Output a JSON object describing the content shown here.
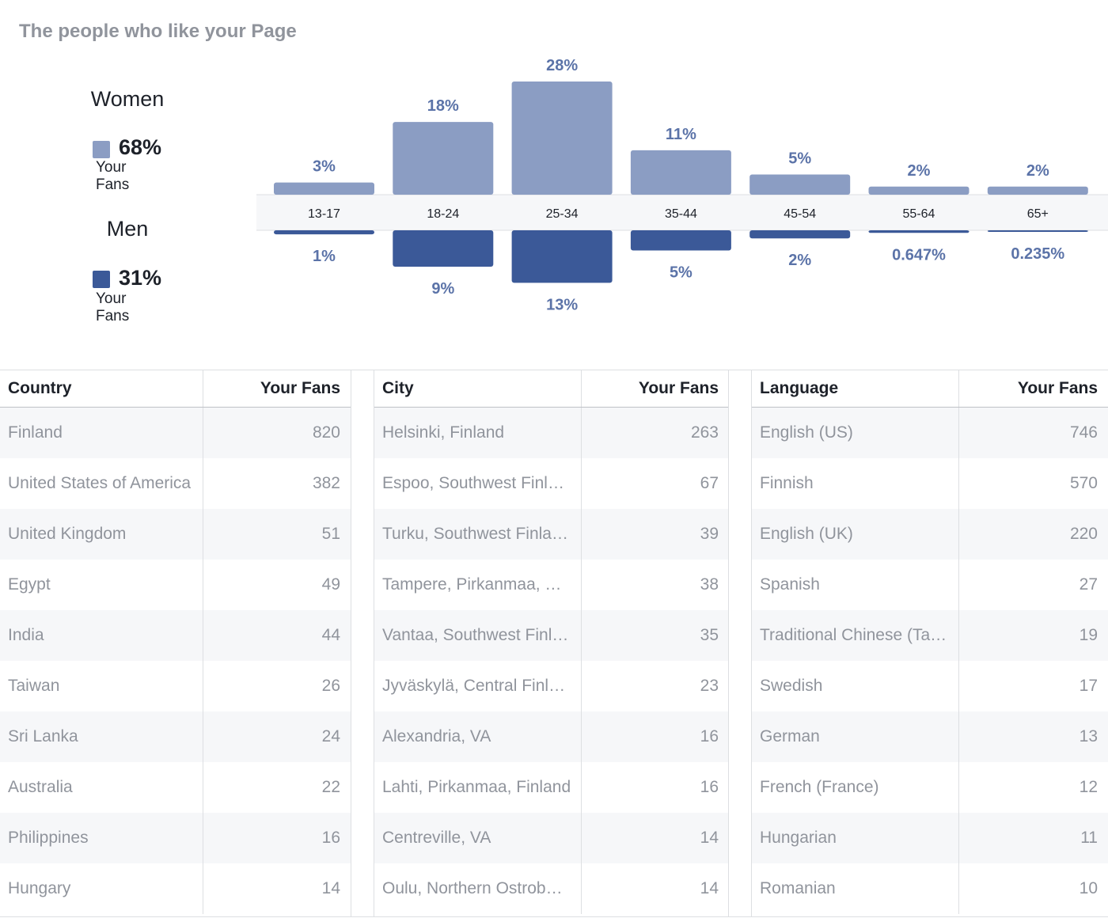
{
  "section_title": "The people who like your Page",
  "colors": {
    "women": "#8b9dc3",
    "men": "#3b5998",
    "label": "#5b73a8",
    "axis_band": "#f6f7f9",
    "grid": "#dddfe2"
  },
  "legend": {
    "women": {
      "heading": "Women",
      "percent": "68%",
      "sub": "Your Fans"
    },
    "men": {
      "heading": "Men",
      "percent": "31%",
      "sub": "Your Fans"
    }
  },
  "chart_data": {
    "type": "bar",
    "categories": [
      "13-17",
      "18-24",
      "25-34",
      "35-44",
      "45-54",
      "55-64",
      "65+"
    ],
    "series": [
      {
        "name": "Women",
        "values": [
          3,
          18,
          28,
          11,
          5,
          2,
          2
        ],
        "labels": [
          "3%",
          "18%",
          "28%",
          "11%",
          "5%",
          "2%",
          "2%"
        ]
      },
      {
        "name": "Men",
        "values": [
          1,
          9,
          13,
          5,
          2,
          0.647,
          0.235
        ],
        "labels": [
          "1%",
          "9%",
          "13%",
          "5%",
          "2%",
          "0.647%",
          "0.235%"
        ]
      }
    ],
    "title": "",
    "xlabel": "",
    "ylabel": "",
    "ylim": [
      0,
      28
    ],
    "grid": false,
    "legend_position": "left"
  },
  "tables": [
    {
      "header": "Country",
      "value_header": "Your Fans",
      "rows": [
        {
          "name": "Finland",
          "value": "820"
        },
        {
          "name": "United States of America",
          "value": "382"
        },
        {
          "name": "United Kingdom",
          "value": "51"
        },
        {
          "name": "Egypt",
          "value": "49"
        },
        {
          "name": "India",
          "value": "44"
        },
        {
          "name": "Taiwan",
          "value": "26"
        },
        {
          "name": "Sri Lanka",
          "value": "24"
        },
        {
          "name": "Australia",
          "value": "22"
        },
        {
          "name": "Philippines",
          "value": "16"
        },
        {
          "name": "Hungary",
          "value": "14"
        }
      ]
    },
    {
      "header": "City",
      "value_header": "Your Fans",
      "rows": [
        {
          "name": "Helsinki, Finland",
          "value": "263"
        },
        {
          "name": "Espoo, Southwest Finla…",
          "value": "67"
        },
        {
          "name": "Turku, Southwest Finla…",
          "value": "39"
        },
        {
          "name": "Tampere, Pirkanmaa, F…",
          "value": "38"
        },
        {
          "name": "Vantaa, Southwest Finl…",
          "value": "35"
        },
        {
          "name": "Jyväskylä, Central Finla…",
          "value": "23"
        },
        {
          "name": "Alexandria, VA",
          "value": "16"
        },
        {
          "name": "Lahti, Pirkanmaa, Finland",
          "value": "16"
        },
        {
          "name": "Centreville, VA",
          "value": "14"
        },
        {
          "name": "Oulu, Northern Ostrobo…",
          "value": "14"
        }
      ]
    },
    {
      "header": "Language",
      "value_header": "Your Fans",
      "rows": [
        {
          "name": "English (US)",
          "value": "746"
        },
        {
          "name": "Finnish",
          "value": "570"
        },
        {
          "name": "English (UK)",
          "value": "220"
        },
        {
          "name": "Spanish",
          "value": "27"
        },
        {
          "name": "Traditional Chinese (Tai…",
          "value": "19"
        },
        {
          "name": "Swedish",
          "value": "17"
        },
        {
          "name": "German",
          "value": "13"
        },
        {
          "name": "French (France)",
          "value": "12"
        },
        {
          "name": "Hungarian",
          "value": "11"
        },
        {
          "name": "Romanian",
          "value": "10"
        }
      ]
    }
  ]
}
